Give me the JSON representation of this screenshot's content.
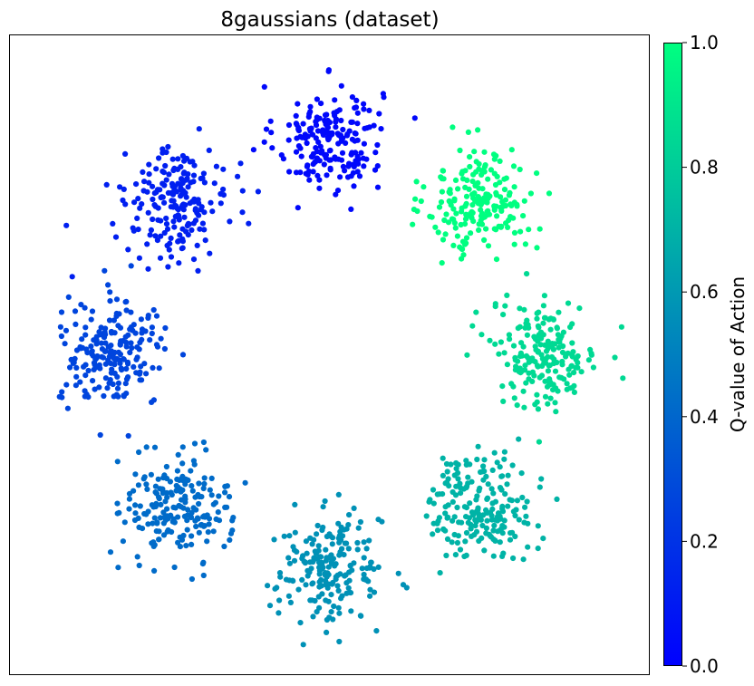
{
  "chart_data": {
    "type": "scatter",
    "title": "8gaussians (dataset)",
    "xlabel": "",
    "ylabel": "",
    "axes_ticks_visible": false,
    "xlim": [
      -4.2,
      4.2
    ],
    "ylim": [
      -4.2,
      4.2
    ],
    "colormap": "winter",
    "colorbar": {
      "label": "Q-value of Action",
      "range": [
        0.0,
        1.0
      ],
      "ticks": [
        "0.0",
        "0.2",
        "0.4",
        "0.6",
        "0.8",
        "1.0"
      ],
      "tick_values": [
        0.0,
        0.2,
        0.4,
        0.6,
        0.8,
        1.0
      ],
      "color_low": "#0000ff",
      "color_high": "#00ff80"
    },
    "point_color_hex_low": "#0000ff",
    "clusters": [
      {
        "center": [
          0.0,
          2.83
        ],
        "q_value": 0.03,
        "n_points": 200
      },
      {
        "center": [
          2.0,
          2.0
        ],
        "q_value": 1.0,
        "n_points": 200
      },
      {
        "center": [
          2.83,
          0.0
        ],
        "q_value": 0.85,
        "n_points": 200
      },
      {
        "center": [
          2.0,
          -2.0
        ],
        "q_value": 0.7,
        "n_points": 200
      },
      {
        "center": [
          0.0,
          -2.83
        ],
        "q_value": 0.57,
        "n_points": 200
      },
      {
        "center": [
          -2.0,
          -2.0
        ],
        "q_value": 0.42,
        "n_points": 200
      },
      {
        "center": [
          -2.83,
          0.0
        ],
        "q_value": 0.27,
        "n_points": 200
      },
      {
        "center": [
          -2.0,
          2.0
        ],
        "q_value": 0.12,
        "n_points": 200
      }
    ],
    "cluster_std": 0.35
  }
}
